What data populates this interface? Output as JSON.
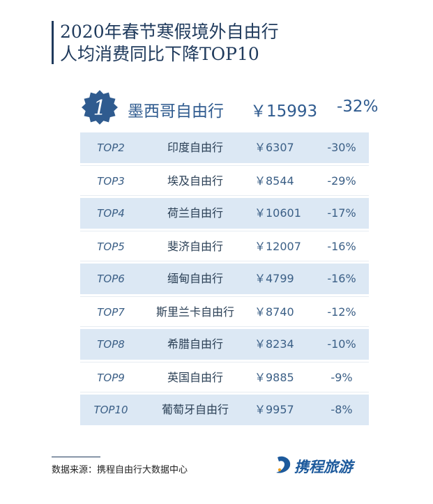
{
  "title_line1": "2020年春节寒假境外自由行",
  "title_line2": "人均消费同比下降TOP10",
  "chart_data": {
    "type": "table",
    "title": "2020年春节寒假境外自由行人均消费同比下降TOP10",
    "columns": [
      "rank",
      "destination",
      "per_capita_spend",
      "yoy_change"
    ],
    "top1": {
      "rank": "1",
      "name": "墨西哥自由行",
      "price": "￥15993",
      "change": "-32%",
      "value": 15993,
      "change_pct": -32
    },
    "rows": [
      {
        "rank": "TOP2",
        "name": "印度自由行",
        "price": "￥6307",
        "change": "-30%",
        "value": 6307,
        "change_pct": -30
      },
      {
        "rank": "TOP3",
        "name": "埃及自由行",
        "price": "￥8544",
        "change": "-29%",
        "value": 8544,
        "change_pct": -29
      },
      {
        "rank": "TOP4",
        "name": "荷兰自由行",
        "price": "￥10601",
        "change": "-17%",
        "value": 10601,
        "change_pct": -17
      },
      {
        "rank": "TOP5",
        "name": "斐济自由行",
        "price": "￥12007",
        "change": "-16%",
        "value": 12007,
        "change_pct": -16
      },
      {
        "rank": "TOP6",
        "name": "缅甸自由行",
        "price": "￥4799",
        "change": "-16%",
        "value": 4799,
        "change_pct": -16
      },
      {
        "rank": "TOP7",
        "name": "斯里兰卡自由行",
        "price": "￥8740",
        "change": "-12%",
        "value": 8740,
        "change_pct": -12
      },
      {
        "rank": "TOP8",
        "name": "希腊自由行",
        "price": "￥8234",
        "change": "-10%",
        "value": 8234,
        "change_pct": -10
      },
      {
        "rank": "TOP9",
        "name": "英国自由行",
        "price": "￥9885",
        "change": "-9%",
        "value": 9885,
        "change_pct": -9
      },
      {
        "rank": "TOP10",
        "name": "葡萄牙自由行",
        "price": "￥9957",
        "change": "-8%",
        "value": 9957,
        "change_pct": -8
      }
    ]
  },
  "source": "数据来源：携程自由行大数据中心",
  "logo_text": "携程旅游",
  "colors": {
    "accent": "#2f5b8f",
    "row_blue": "#dce8f4",
    "title": "#1f3a5c"
  }
}
